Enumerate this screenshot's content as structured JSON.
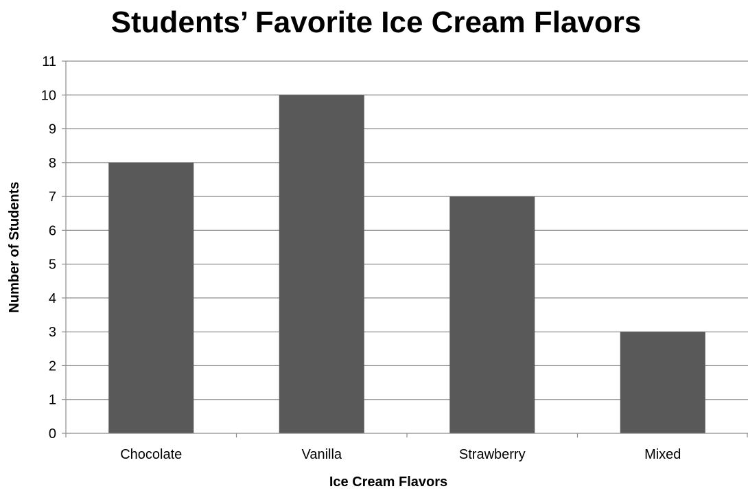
{
  "chart_data": {
    "type": "bar",
    "title": "Students’ Favorite Ice Cream Flavors",
    "xlabel": "Ice Cream Flavors",
    "ylabel": "Number of Students",
    "categories": [
      "Chocolate",
      "Vanilla",
      "Strawberry",
      "Mixed"
    ],
    "values": [
      8,
      10,
      7,
      3
    ],
    "ylim": [
      0,
      11
    ],
    "yticks": [
      "0",
      "1",
      "2",
      "3",
      "4",
      "5",
      "6",
      "7",
      "8",
      "9",
      "10",
      "11"
    ],
    "grid": true,
    "legend": "none",
    "colors": {
      "bar": "#595959",
      "grid": "#8c8c8c"
    }
  }
}
